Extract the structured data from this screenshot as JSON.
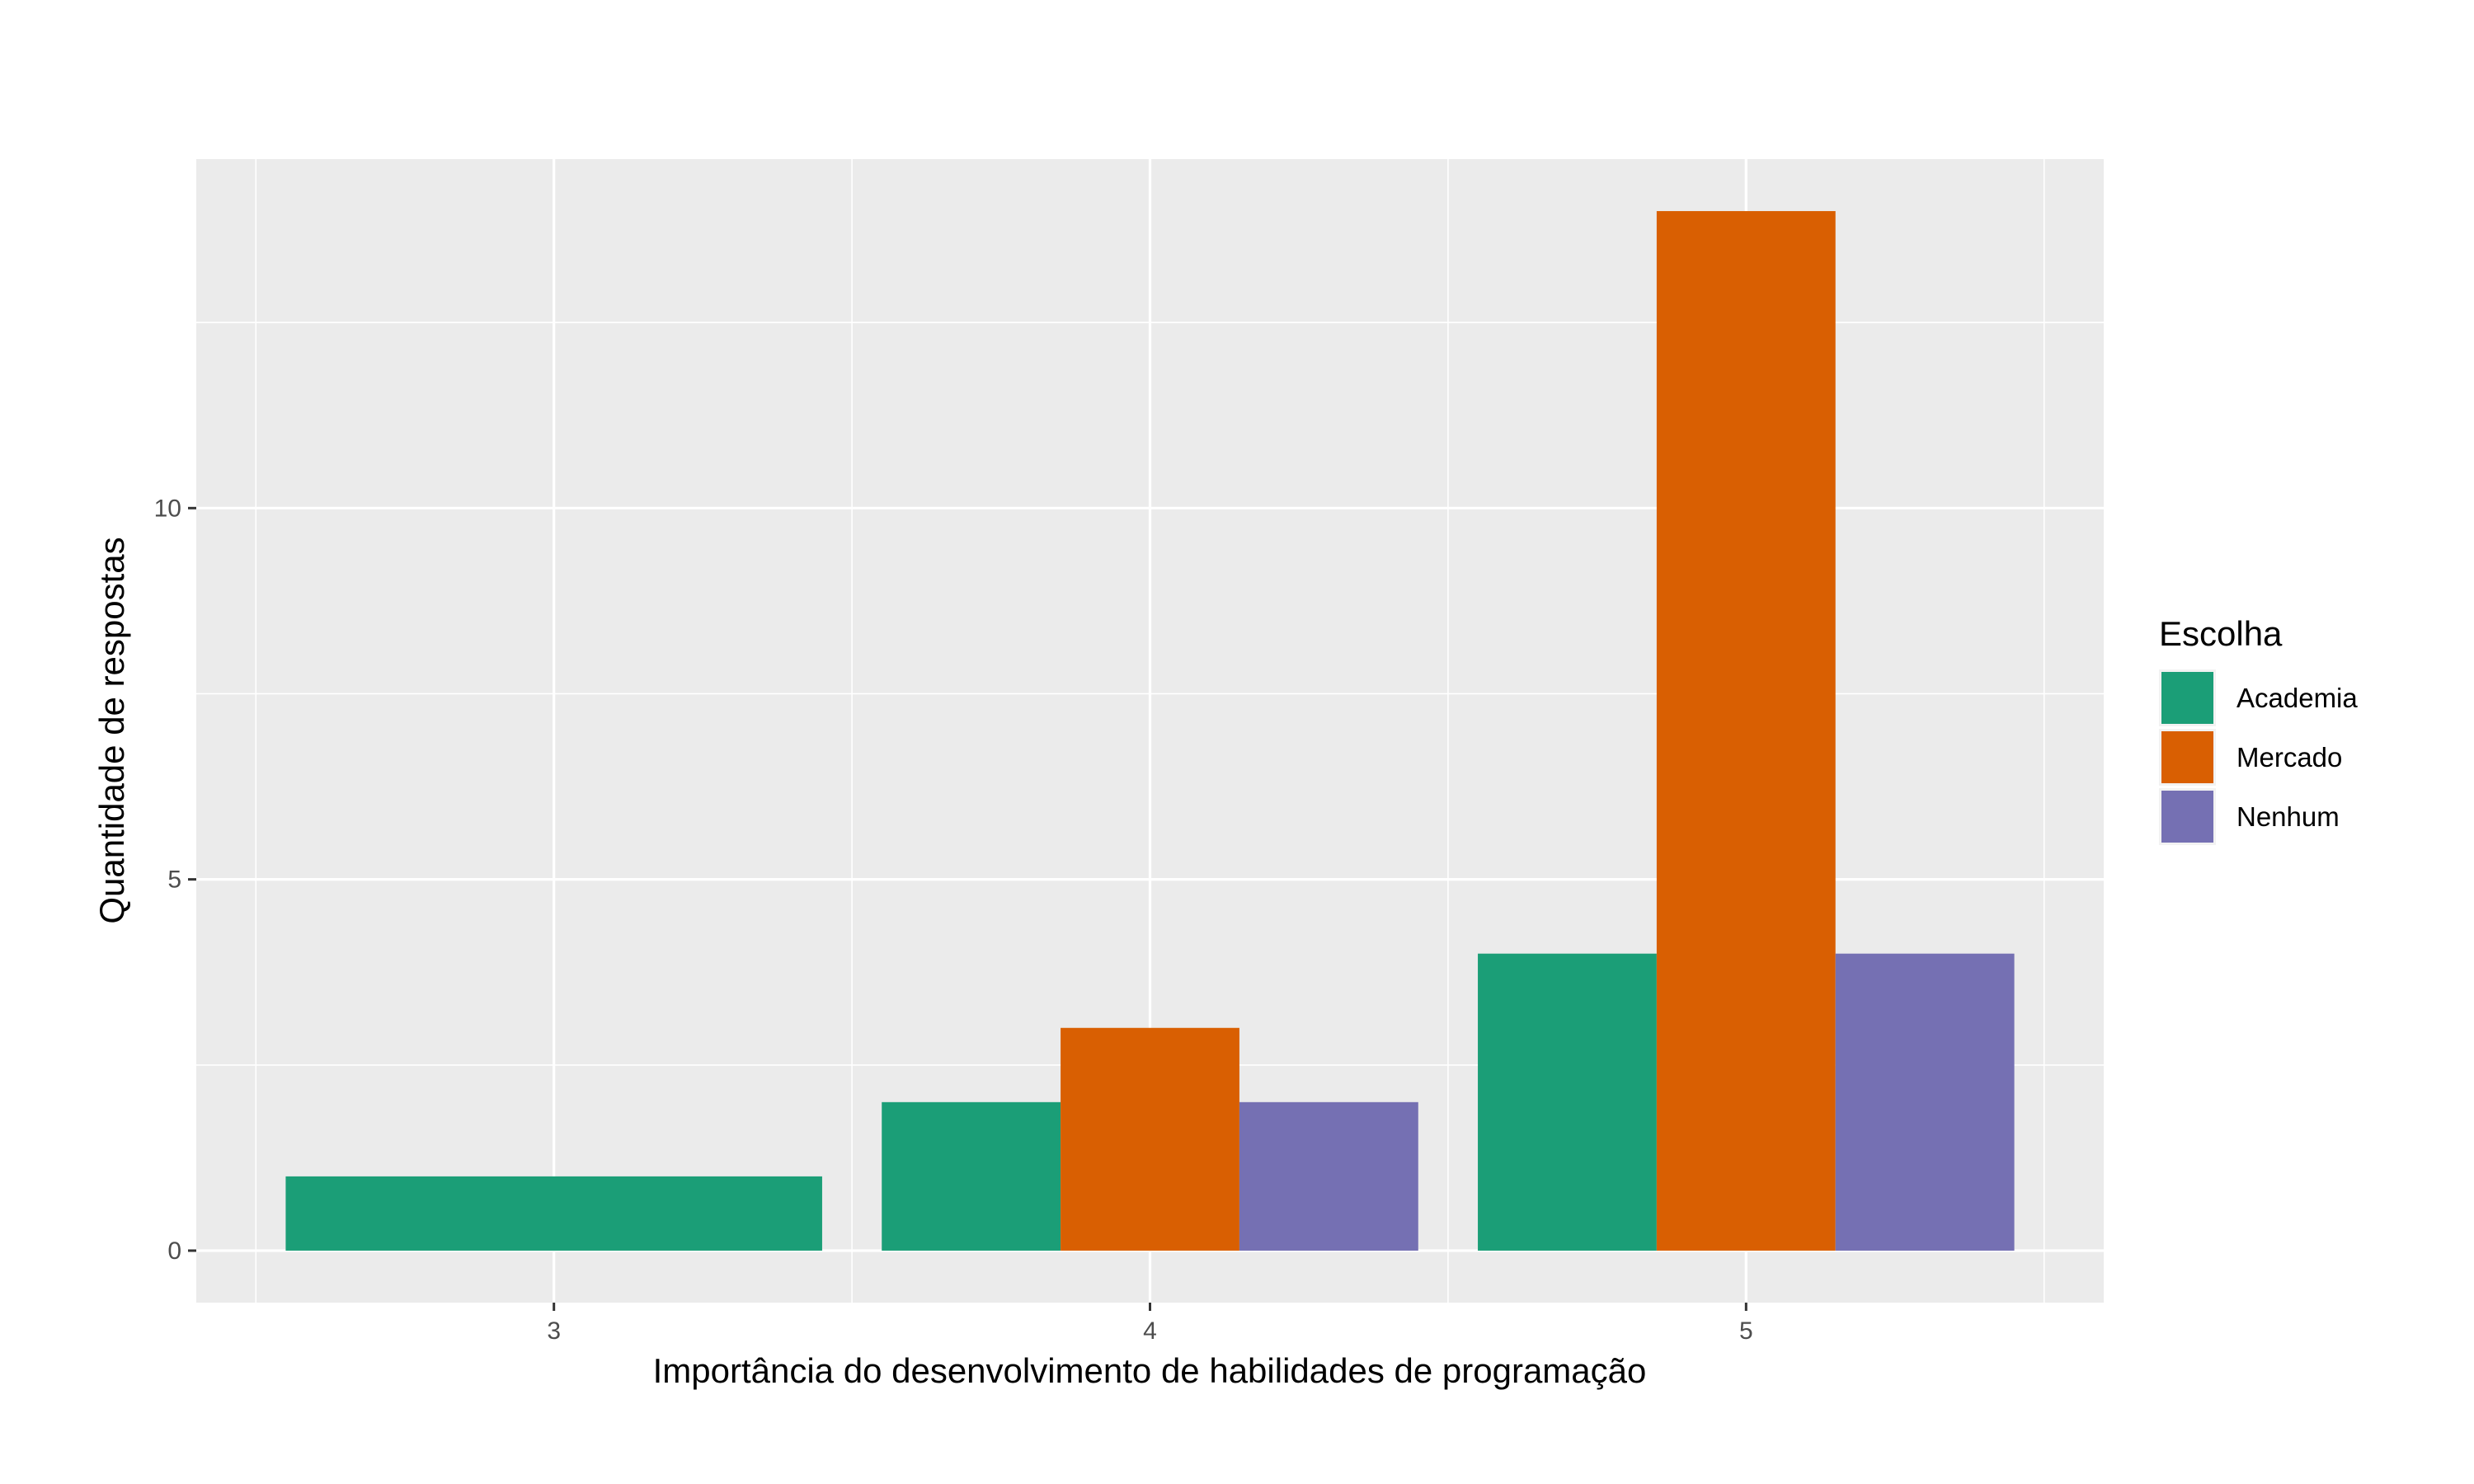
{
  "chart_data": {
    "type": "bar",
    "layout": "grouped",
    "categories": [
      "3",
      "4",
      "5"
    ],
    "series": [
      {
        "name": "Academia",
        "values": [
          1,
          2,
          4
        ],
        "color": "#1B9E77"
      },
      {
        "name": "Mercado",
        "values": [
          0,
          3,
          14
        ],
        "color": "#D95F02"
      },
      {
        "name": "Nenhum",
        "values": [
          0,
          2,
          4
        ],
        "color": "#7570B3"
      }
    ],
    "xlabel": "Importância do desenvolvimento de habilidades de programação",
    "ylabel": "Quantidade de respostas",
    "yticks": [
      0,
      5,
      10
    ],
    "ylim": [
      -0.7,
      14.7
    ],
    "legend": {
      "title": "Escolha",
      "position": "right"
    },
    "grid": true,
    "panel_background": "#EBEBEB",
    "grid_color": "#FFFFFF"
  }
}
